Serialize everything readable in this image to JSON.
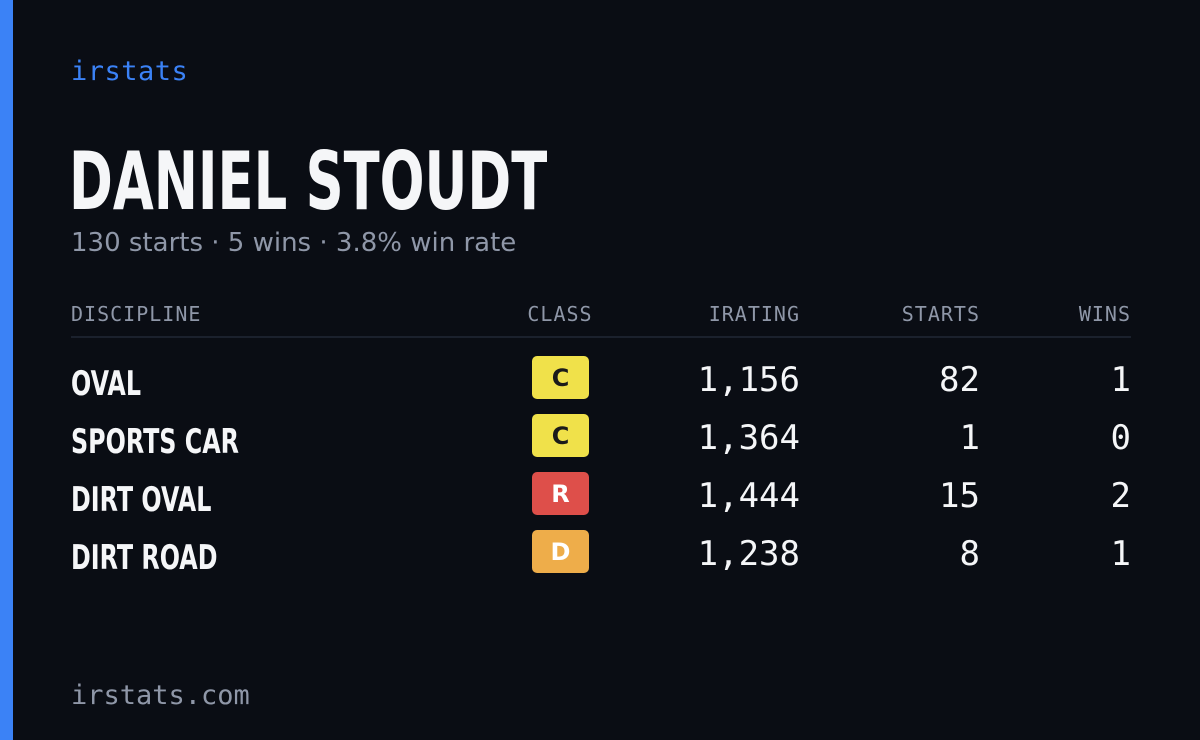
{
  "brand": "irstats",
  "driver": {
    "name": "DANIEL STOUDT",
    "summary": "130 starts · 5 wins · 3.8% win rate"
  },
  "table": {
    "headers": {
      "discipline": "DISCIPLINE",
      "class": "CLASS",
      "irating": "IRATING",
      "starts": "STARTS",
      "wins": "WINS"
    },
    "rows": [
      {
        "discipline": "OVAL",
        "class": "C",
        "class_bg": "#f0e14a",
        "class_fg": "#1a1a1a",
        "irating": "1,156",
        "starts": "82",
        "wins": "1"
      },
      {
        "discipline": "SPORTS CAR",
        "class": "C",
        "class_bg": "#f0e14a",
        "class_fg": "#1a1a1a",
        "irating": "1,364",
        "starts": "1",
        "wins": "0"
      },
      {
        "discipline": "DIRT OVAL",
        "class": "R",
        "class_bg": "#de4f4a",
        "class_fg": "#ffffff",
        "irating": "1,444",
        "starts": "15",
        "wins": "2"
      },
      {
        "discipline": "DIRT ROAD",
        "class": "D",
        "class_bg": "#eead4a",
        "class_fg": "#ffffff",
        "irating": "1,238",
        "starts": "8",
        "wins": "1"
      }
    ]
  },
  "footer": "irstats.com",
  "colors": {
    "accent": "#3b82f6",
    "background": "#0a0d14",
    "text": "#f5f6f8",
    "muted": "#8f97a8"
  }
}
